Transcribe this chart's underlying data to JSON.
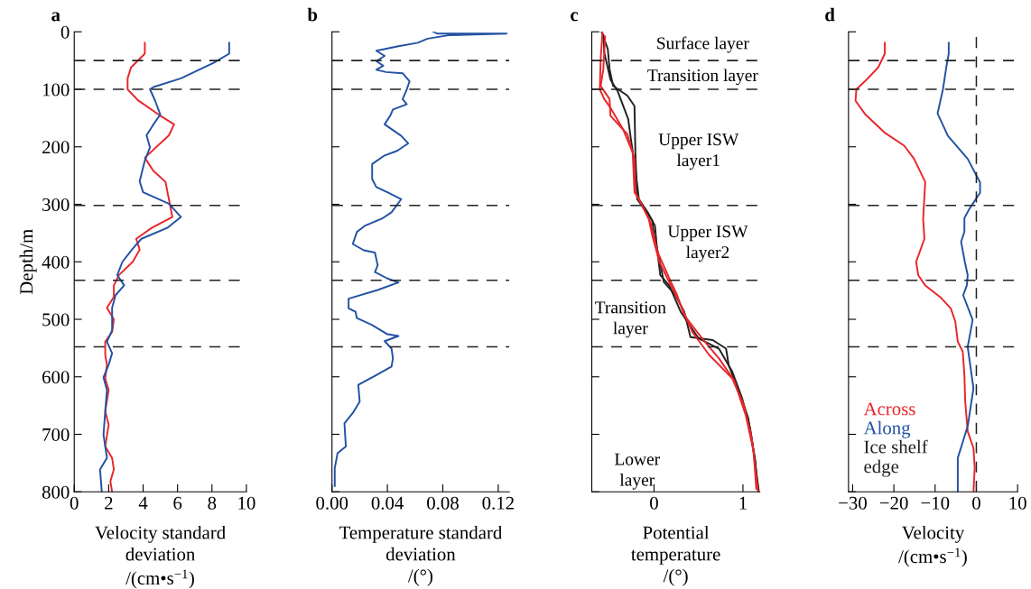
{
  "chart_data": [
    {
      "type": "line",
      "title": "a",
      "ylabel": "Depth/m",
      "xlabel": "Velocity standard\ndeviation\n/(cm•s$^{−1}$)",
      "xlim": [
        0,
        10
      ],
      "xticks": [
        0,
        2,
        4,
        6,
        8,
        10
      ],
      "ylim": [
        800,
        0
      ],
      "yticks": [
        0,
        100,
        200,
        300,
        400,
        500,
        600,
        700,
        800
      ],
      "grid": false,
      "line_style": "solid",
      "series": [
        {
          "color": "#e8262a",
          "x": [
            4.1,
            4.1,
            3.3,
            3.1,
            3.1,
            3.7,
            4.9,
            5.8,
            5.5,
            4.1,
            4.6,
            5.3,
            5.7,
            4.5,
            3.6,
            3.8,
            3.4,
            2.6,
            2.3,
            2.3,
            1.9,
            2.3,
            2.2,
            1.8,
            1.8,
            1.9,
            1.8,
            2.0,
            1.8,
            2.0,
            1.8,
            2.2,
            2.3,
            2.1,
            2.2
          ],
          "values": [
            19,
            38,
            62,
            81,
            100,
            119,
            144,
            161,
            180,
            219,
            242,
            261,
            322,
            341,
            360,
            379,
            400,
            423,
            441,
            461,
            480,
            500,
            522,
            539,
            562,
            579,
            603,
            623,
            660,
            683,
            721,
            741,
            761,
            782,
            800
          ]
        },
        {
          "color": "#2352a4",
          "x": [
            9.0,
            9.0,
            8.1,
            6.2,
            4.6,
            4.4,
            4.7,
            5.0,
            4.6,
            4.2,
            4.4,
            4.1,
            3.8,
            4.0,
            5.5,
            6.2,
            5.4,
            3.9,
            3.4,
            2.8,
            2.5,
            2.9,
            2.4,
            2.2,
            2.2,
            1.9,
            2.2,
            2.0,
            1.7,
            1.9,
            1.8,
            1.7,
            1.9,
            1.5,
            1.6
          ],
          "values": [
            19,
            38,
            54,
            81,
            96,
            100,
            120,
            144,
            161,
            180,
            201,
            224,
            260,
            279,
            299,
            322,
            341,
            360,
            377,
            400,
            423,
            441,
            458,
            480,
            519,
            539,
            559,
            579,
            601,
            623,
            660,
            701,
            741,
            761,
            800
          ]
        }
      ],
      "ref_lines": [
        {
          "axis": "y",
          "value": 50,
          "line_style": "dashed",
          "color": "#222222"
        },
        {
          "axis": "y",
          "value": 100,
          "line_style": "dashed",
          "color": "#222222"
        },
        {
          "axis": "y",
          "value": 302,
          "line_style": "dashed",
          "color": "#222222"
        },
        {
          "axis": "y",
          "value": 432,
          "line_style": "dashed",
          "color": "#222222"
        },
        {
          "axis": "y",
          "value": 548,
          "line_style": "dashed",
          "color": "#222222"
        }
      ]
    },
    {
      "type": "line",
      "title": "b",
      "xlabel": "Temperature standard\ndeviation\n/(°)",
      "xlim": [
        0,
        0.128
      ],
      "xticks": [
        {
          "value": 0,
          "label": "0.00"
        },
        0.04,
        0.08,
        0.12
      ],
      "ylim": [
        800,
        0
      ],
      "yticks": [
        {
          "value": 0,
          "label": null
        },
        {
          "value": 100,
          "label": null
        },
        {
          "value": 200,
          "label": null
        },
        {
          "value": 300,
          "label": null
        },
        {
          "value": 400,
          "label": null
        },
        {
          "value": 500,
          "label": null
        },
        {
          "value": 600,
          "label": null
        },
        {
          "value": 700,
          "label": null
        },
        {
          "value": 800,
          "label": null
        }
      ],
      "tick_labels": "x",
      "grid": false,
      "line_style": "solid",
      "series": [
        {
          "color": "#2352a4",
          "x": [
            0.073,
            0.076,
            0.126,
            0.084,
            0.069,
            0.062,
            0.048,
            0.032,
            0.038,
            0.032,
            0.037,
            0.032,
            0.039,
            0.051,
            0.056,
            0.054,
            0.051,
            0.054,
            0.044,
            0.042,
            0.038,
            0.05,
            0.055,
            0.047,
            0.038,
            0.029,
            0.029,
            0.032,
            0.04,
            0.05,
            0.043,
            0.036,
            0.024,
            0.018,
            0.015,
            0.023,
            0.031,
            0.033,
            0.031,
            0.04,
            0.048,
            0.033,
            0.012,
            0.012,
            0.017,
            0.018,
            0.029,
            0.04,
            0.048,
            0.038,
            0.043,
            0.044,
            0.043,
            0.032,
            0.019,
            0.02,
            0.015,
            0.009,
            0.01,
            0.004,
            0.002,
            0.002
          ],
          "values": [
            0,
            3,
            3,
            6,
            12,
            19,
            25,
            33,
            42,
            51,
            59,
            66,
            70,
            72,
            86,
            100,
            117,
            126,
            135,
            146,
            161,
            181,
            194,
            207,
            215,
            230,
            256,
            270,
            279,
            291,
            314,
            325,
            337,
            348,
            369,
            380,
            384,
            406,
            418,
            429,
            436,
            449,
            464,
            481,
            487,
            498,
            510,
            526,
            529,
            538,
            551,
            568,
            582,
            597,
            614,
            643,
            663,
            681,
            721,
            733,
            759,
            790
          ]
        }
      ],
      "ref_lines": [
        {
          "axis": "y",
          "value": 50,
          "line_style": "dashed",
          "color": "#222222"
        },
        {
          "axis": "y",
          "value": 100,
          "line_style": "dashed",
          "color": "#222222"
        },
        {
          "axis": "y",
          "value": 302,
          "line_style": "dashed",
          "color": "#222222"
        },
        {
          "axis": "y",
          "value": 432,
          "line_style": "dashed",
          "color": "#222222"
        },
        {
          "axis": "y",
          "value": 548,
          "line_style": "dashed",
          "color": "#222222"
        }
      ]
    },
    {
      "type": "line",
      "title": "c",
      "xlabel": "Potential\ntemperature\n/(°)",
      "xlim": [
        -0.7,
        1.19
      ],
      "xticks": [
        0,
        1
      ],
      "ylim": [
        800,
        0
      ],
      "yticks": [
        {
          "value": 0,
          "label": null
        },
        {
          "value": 100,
          "label": null
        },
        {
          "value": 200,
          "label": null
        },
        {
          "value": 300,
          "label": null
        },
        {
          "value": 400,
          "label": null
        },
        {
          "value": 500,
          "label": null
        },
        {
          "value": 600,
          "label": null
        },
        {
          "value": 700,
          "label": null
        },
        {
          "value": 800,
          "label": null
        }
      ],
      "tick_labels": "x",
      "grid": false,
      "line_style": "solid",
      "series": [
        {
          "color": "#222222",
          "x": [
            -0.59,
            -0.52,
            -0.5,
            -0.46,
            -0.3,
            -0.22,
            -0.21,
            -0.19,
            -0.02,
            0.0,
            0.06,
            0.11,
            0.24,
            0.34,
            0.41,
            0.66,
            0.81,
            0.84,
            0.97,
            1.06,
            1.12,
            1.18
          ],
          "values": [
            0,
            30,
            65,
            94,
            111,
            129,
            210,
            291,
            328,
            354,
            395,
            435,
            458,
            487,
            531,
            536,
            551,
            580,
            632,
            672,
            730,
            800
          ]
        },
        {
          "color": "#222222",
          "x": [
            -0.57,
            -0.56,
            -0.49,
            -0.41,
            -0.29,
            -0.26,
            -0.21,
            -0.17,
            -0.07,
            0.01,
            0.03,
            0.07,
            0.17,
            0.3,
            0.5,
            0.73,
            0.88,
            0.99,
            1.08,
            1.14,
            1.16
          ],
          "values": [
            5,
            36,
            83,
            103,
            152,
            187,
            239,
            291,
            314,
            337,
            371,
            423,
            441,
            487,
            533,
            551,
            591,
            637,
            689,
            747,
            790
          ]
        },
        {
          "color": "#e8262a",
          "x": [
            -0.58,
            -0.6,
            -0.61,
            -0.56,
            -0.49,
            -0.35,
            -0.24,
            -0.22,
            -0.15,
            -0.06,
            -0.02,
            0.06,
            0.17,
            0.3,
            0.43,
            0.62,
            0.88,
            1.01,
            1.1,
            1.17
          ],
          "values": [
            0,
            48,
            100,
            117,
            132,
            169,
            210,
            279,
            297,
            325,
            354,
            400,
            435,
            475,
            522,
            562,
            603,
            649,
            707,
            800
          ]
        },
        {
          "color": "#e8262a",
          "x": [
            -0.55,
            -0.57,
            -0.6,
            -0.5,
            -0.49,
            -0.3,
            -0.22,
            -0.21,
            -0.04,
            0.04,
            0.19,
            0.26,
            0.34,
            0.54,
            0.73,
            0.9,
            1.03,
            1.12,
            1.15
          ],
          "values": [
            8,
            65,
            94,
            117,
            146,
            178,
            221,
            279,
            331,
            383,
            435,
            458,
            493,
            533,
            568,
            606,
            666,
            730,
            795
          ]
        }
      ],
      "annotations": [
        "Surface layer",
        "Transition layer",
        "Upper ISW\nlayer1",
        "Upper ISW\nlayer2",
        "Transition\nlayer",
        "Lower\nlayer"
      ],
      "ref_lines": [
        {
          "axis": "y",
          "value": 50,
          "line_style": "dashed",
          "color": "#222222"
        },
        {
          "axis": "y",
          "value": 100,
          "line_style": "dashed",
          "color": "#222222"
        },
        {
          "axis": "y",
          "value": 302,
          "line_style": "dashed",
          "color": "#222222"
        },
        {
          "axis": "y",
          "value": 432,
          "line_style": "dashed",
          "color": "#222222"
        },
        {
          "axis": "y",
          "value": 548,
          "line_style": "dashed",
          "color": "#222222"
        }
      ]
    },
    {
      "type": "line",
      "title": "d",
      "xlabel": "Velocity\n/(cm•s$^{−1}$)",
      "xlim": [
        -31,
        10
      ],
      "xticks": [
        {
          "value": -30,
          "label": "−30"
        },
        {
          "value": -20,
          "label": "−20"
        },
        {
          "value": -10,
          "label": "−10"
        },
        0,
        10
      ],
      "ylim": [
        800,
        0
      ],
      "yticks": [
        {
          "value": 0,
          "label": null
        },
        {
          "value": 100,
          "label": null
        },
        {
          "value": 200,
          "label": null
        },
        {
          "value": 300,
          "label": null
        },
        {
          "value": 400,
          "label": null
        },
        {
          "value": 500,
          "label": null
        },
        {
          "value": 600,
          "label": null
        },
        {
          "value": 700,
          "label": null
        },
        {
          "value": 800,
          "label": null
        }
      ],
      "tick_labels": "x",
      "grid": false,
      "line_style": "solid",
      "legend": "bottom left",
      "series": [
        {
          "name": "Across",
          "color": "#e8262a",
          "x": [
            -22.2,
            -22.2,
            -23.8,
            -27.0,
            -29.1,
            -29.3,
            -27.0,
            -22.3,
            -17.5,
            -15.1,
            -12.4,
            -12.9,
            -12.6,
            -14.6,
            -14.1,
            -12.4,
            -8.8,
            -6.2,
            -5.1,
            -4.5,
            -3.3,
            -2.9,
            -2.7,
            -2.1,
            -0.7,
            -0.4,
            -0.7
          ],
          "values": [
            19,
            38,
            62,
            86,
            100,
            120,
            143,
            175,
            198,
            221,
            261,
            325,
            360,
            400,
            423,
            441,
            461,
            481,
            504,
            539,
            556,
            597,
            643,
            695,
            724,
            758,
            800
          ]
        },
        {
          "name": "Along",
          "color": "#2352a4",
          "x": [
            -6.7,
            -6.7,
            -7.3,
            -8.1,
            -9.4,
            -6.9,
            -2.1,
            0.9,
            0.9,
            -1.7,
            -2.9,
            -2.9,
            -3.7,
            -2.8,
            -2.1,
            -2.3,
            -3.2,
            -0.9,
            -2.1,
            -0.7,
            -2.1,
            -4.5,
            -4.5
          ],
          "values": [
            19,
            38,
            62,
            100,
            142,
            181,
            221,
            262,
            280,
            308,
            324,
            348,
            365,
            400,
            423,
            441,
            458,
            501,
            548,
            620,
            686,
            741,
            800
          ]
        }
      ],
      "ref_lines": [
        {
          "axis": "y",
          "value": 50,
          "line_style": "dashed",
          "color": "#222222"
        },
        {
          "axis": "y",
          "value": 100,
          "line_style": "dashed",
          "color": "#222222"
        },
        {
          "axis": "y",
          "value": 302,
          "line_style": "dashed",
          "color": "#222222"
        },
        {
          "axis": "y",
          "value": 432,
          "line_style": "dashed",
          "color": "#222222"
        },
        {
          "axis": "y",
          "value": 548,
          "line_style": "dashed",
          "color": "#222222"
        },
        {
          "axis": "x",
          "value": 0,
          "label": "Ice shelf\nedge",
          "line_style": "dashed",
          "color": "#222222"
        }
      ]
    }
  ]
}
